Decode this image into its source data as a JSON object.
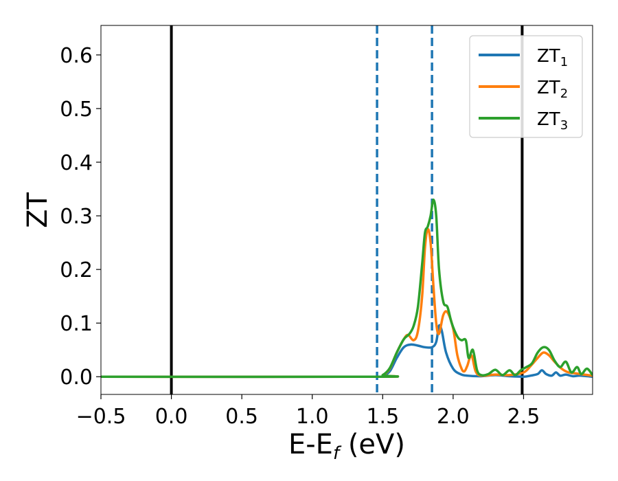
{
  "chart_data": {
    "type": "line",
    "xlabel_main": "E-E",
    "xlabel_sub": "f",
    "xlabel_tail": " (eV)",
    "ylabel": "ZT",
    "xlim": [
      -0.5,
      2.99
    ],
    "ylim": [
      -0.033,
      0.655
    ],
    "xticks": [
      -0.5,
      0.0,
      0.5,
      1.0,
      1.5,
      2.0,
      2.5
    ],
    "xtick_labels": [
      "−0.5",
      "0.0",
      "0.5",
      "1.0",
      "1.5",
      "2.0",
      "2.5"
    ],
    "yticks": [
      0.0,
      0.1,
      0.2,
      0.3,
      0.4,
      0.5,
      0.6
    ],
    "ytick_labels": [
      "0.0",
      "0.1",
      "0.2",
      "0.3",
      "0.4",
      "0.5",
      "0.6"
    ],
    "grid": false,
    "legend_position": "top-right",
    "vlines": [
      {
        "x": 0.0,
        "style": "solid",
        "color": "#000000"
      },
      {
        "x": 2.49,
        "style": "solid",
        "color": "#000000"
      },
      {
        "x": 1.46,
        "style": "dashed",
        "color": "#1f77b4"
      },
      {
        "x": 1.85,
        "style": "dashed",
        "color": "#1f77b4"
      }
    ],
    "series": [
      {
        "name": "ZT",
        "sub": "1",
        "color": "#1f77b4",
        "points": [
          [
            -0.5,
            0
          ],
          [
            1.45,
            0
          ],
          [
            1.5,
            0.002
          ],
          [
            1.55,
            0.01
          ],
          [
            1.6,
            0.035
          ],
          [
            1.65,
            0.055
          ],
          [
            1.7,
            0.06
          ],
          [
            1.75,
            0.058
          ],
          [
            1.8,
            0.055
          ],
          [
            1.85,
            0.055
          ],
          [
            1.88,
            0.065
          ],
          [
            1.9,
            0.095
          ],
          [
            1.92,
            0.085
          ],
          [
            1.95,
            0.045
          ],
          [
            2.0,
            0.015
          ],
          [
            2.05,
            0.005
          ],
          [
            2.1,
            0.002
          ],
          [
            2.2,
            0.001
          ],
          [
            2.3,
            0.003
          ],
          [
            2.4,
            0.001
          ],
          [
            2.5,
            0.0
          ],
          [
            2.55,
            0.002
          ],
          [
            2.6,
            0.005
          ],
          [
            2.63,
            0.012
          ],
          [
            2.66,
            0.005
          ],
          [
            2.7,
            0.002
          ],
          [
            2.73,
            0.008
          ],
          [
            2.76,
            0.002
          ],
          [
            2.8,
            0.004
          ],
          [
            2.85,
            0.001
          ],
          [
            2.9,
            0.002
          ],
          [
            2.99,
            0.0
          ]
        ]
      },
      {
        "name": "ZT",
        "sub": "2",
        "color": "#ff7f0e",
        "points": [
          [
            -0.5,
            0
          ],
          [
            1.45,
            0
          ],
          [
            1.5,
            0.003
          ],
          [
            1.55,
            0.015
          ],
          [
            1.6,
            0.045
          ],
          [
            1.65,
            0.07
          ],
          [
            1.68,
            0.078
          ],
          [
            1.72,
            0.068
          ],
          [
            1.75,
            0.085
          ],
          [
            1.78,
            0.15
          ],
          [
            1.8,
            0.24
          ],
          [
            1.82,
            0.275
          ],
          [
            1.84,
            0.25
          ],
          [
            1.86,
            0.17
          ],
          [
            1.88,
            0.1
          ],
          [
            1.9,
            0.08
          ],
          [
            1.93,
            0.115
          ],
          [
            1.96,
            0.12
          ],
          [
            2.0,
            0.09
          ],
          [
            2.03,
            0.04
          ],
          [
            2.06,
            0.015
          ],
          [
            2.08,
            0.01
          ],
          [
            2.1,
            0.02
          ],
          [
            2.13,
            0.04
          ],
          [
            2.16,
            0.01
          ],
          [
            2.2,
            0.002
          ],
          [
            2.3,
            0.004
          ],
          [
            2.4,
            0.003
          ],
          [
            2.5,
            0.008
          ],
          [
            2.55,
            0.02
          ],
          [
            2.6,
            0.035
          ],
          [
            2.64,
            0.045
          ],
          [
            2.68,
            0.04
          ],
          [
            2.72,
            0.028
          ],
          [
            2.77,
            0.015
          ],
          [
            2.82,
            0.008
          ],
          [
            2.88,
            0.006
          ],
          [
            2.93,
            0.004
          ],
          [
            2.99,
            0.002
          ]
        ]
      },
      {
        "name": "ZT",
        "sub": "3",
        "color": "#2ca02c",
        "points": [
          [
            -0.5,
            0
          ],
          [
            1.45,
            0
          ],
          [
            1.5,
            0.003
          ],
          [
            1.55,
            0.016
          ],
          [
            1.6,
            0.045
          ],
          [
            1.65,
            0.07
          ],
          [
            1.69,
            0.08
          ],
          [
            1.72,
            0.095
          ],
          [
            1.75,
            0.13
          ],
          [
            1.78,
            0.21
          ],
          [
            1.8,
            0.268
          ],
          [
            1.82,
            0.28
          ],
          [
            1.84,
            0.3
          ],
          [
            1.86,
            0.33
          ],
          [
            1.88,
            0.3
          ],
          [
            1.9,
            0.2
          ],
          [
            1.93,
            0.14
          ],
          [
            1.96,
            0.13
          ],
          [
            1.99,
            0.1
          ],
          [
            2.03,
            0.075
          ],
          [
            2.06,
            0.068
          ],
          [
            2.09,
            0.068
          ],
          [
            2.11,
            0.035
          ],
          [
            2.14,
            0.05
          ],
          [
            2.17,
            0.012
          ],
          [
            2.2,
            0.003
          ],
          [
            2.25,
            0.005
          ],
          [
            2.3,
            0.013
          ],
          [
            2.35,
            0.003
          ],
          [
            2.4,
            0.012
          ],
          [
            2.44,
            0.003
          ],
          [
            2.48,
            0.012
          ],
          [
            2.52,
            0.018
          ],
          [
            2.56,
            0.025
          ],
          [
            2.6,
            0.045
          ],
          [
            2.64,
            0.055
          ],
          [
            2.68,
            0.05
          ],
          [
            2.72,
            0.03
          ],
          [
            2.76,
            0.018
          ],
          [
            2.8,
            0.028
          ],
          [
            2.84,
            0.008
          ],
          [
            2.88,
            0.018
          ],
          [
            2.91,
            0.005
          ],
          [
            2.95,
            0.015
          ],
          [
            2.99,
            0.003
          ]
        ]
      }
    ]
  }
}
